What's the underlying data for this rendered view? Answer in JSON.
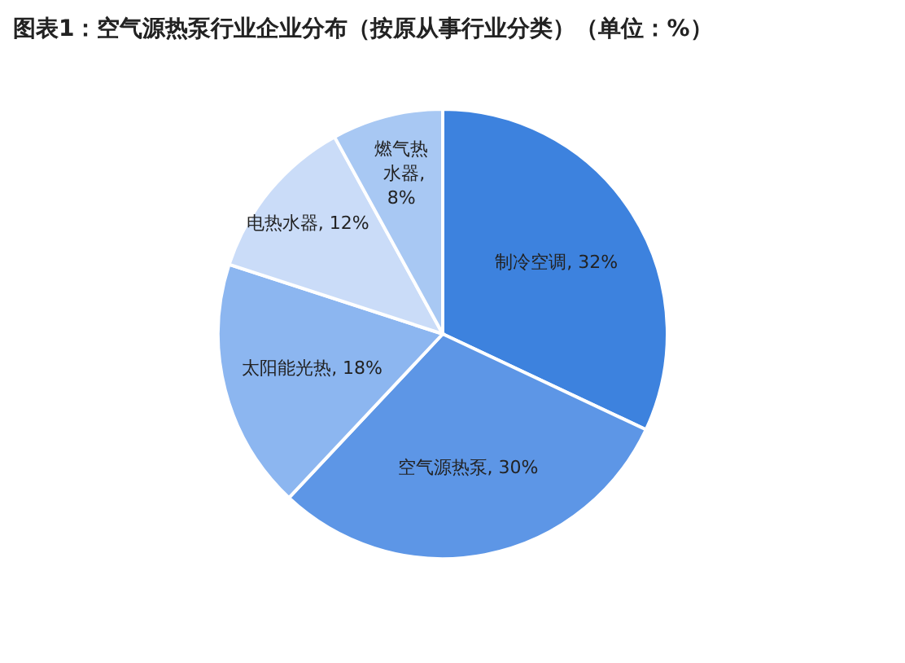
{
  "chart_data": {
    "type": "pie",
    "title": "图表1：空气源热泵行业企业分布（按原从事行业分类）（单位：%）",
    "categories": [
      "制冷空调",
      "空气源热泵",
      "太阳能光热",
      "电热水器",
      "燃气热水器"
    ],
    "values": [
      32,
      30,
      18,
      12,
      8
    ],
    "value_labels": [
      ", 32%",
      ", 30%",
      ", 18%",
      ", 12%",
      ", 8%"
    ],
    "colors": [
      "#3d82de",
      "#5d96e6",
      "#8cb6f0",
      "#cadcf8",
      "#a8c8f3"
    ]
  }
}
